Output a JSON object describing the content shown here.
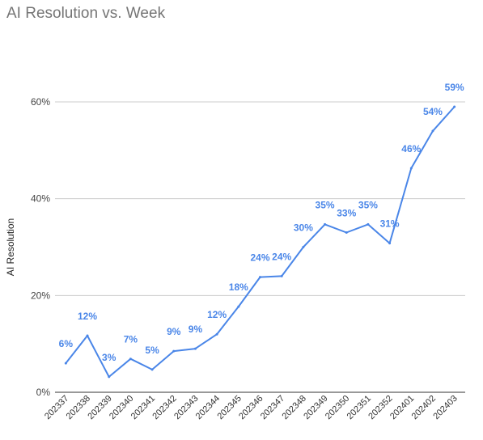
{
  "chart_data": {
    "type": "line",
    "title": "AI Resolution vs. Week",
    "xlabel": "",
    "ylabel": "AI Resolution",
    "categories": [
      "202337",
      "202338",
      "202339",
      "202340",
      "202341",
      "202342",
      "202343",
      "202344",
      "202345",
      "202346",
      "202347",
      "202348",
      "202349",
      "202350",
      "202351",
      "202352",
      "202401",
      "202402",
      "202403"
    ],
    "series": [
      {
        "values": [
          0.06,
          0.117,
          0.032,
          0.069,
          0.047,
          0.085,
          0.09,
          0.12,
          0.177,
          0.238,
          0.24,
          0.3,
          0.347,
          0.33,
          0.347,
          0.308,
          0.463,
          0.54,
          0.59
        ],
        "labels": [
          "6%",
          "12%",
          "3%",
          "7%",
          "5%",
          "9%",
          "9%",
          "12%",
          "18%",
          "24%",
          "24%",
          "30%",
          "35%",
          "33%",
          "35%",
          "31%",
          "46%",
          "54%",
          "59%"
        ]
      }
    ],
    "ylim": [
      0,
      0.6
    ],
    "yticks": [
      {
        "value": 0,
        "label": "0%"
      },
      {
        "value": 0.2,
        "label": "20%"
      },
      {
        "value": 0.4,
        "label": "40%"
      },
      {
        "value": 0.6,
        "label": "60%"
      }
    ],
    "grid": true,
    "line_color": "#4a86e8",
    "grid_color": "#cccccc"
  }
}
